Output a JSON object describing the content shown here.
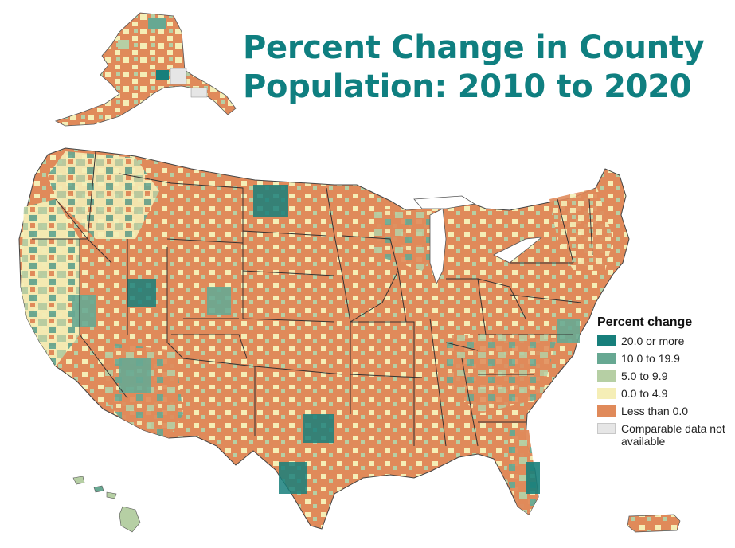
{
  "title": {
    "line1": "Percent Change in County",
    "line2": "Population: 2010 to 2020"
  },
  "legend": {
    "title": "Percent change",
    "items": [
      {
        "label": "20.0 or more",
        "color": "#177f7b"
      },
      {
        "label": "10.0 to 19.9",
        "color": "#67a892"
      },
      {
        "label": "5.0 to 9.9",
        "color": "#b6cfa4"
      },
      {
        "label": "0.0 to 4.9",
        "color": "#f5eeb6"
      },
      {
        "label": "Less than 0.0",
        "color": "#e08a5a"
      },
      {
        "label": "Comparable data not available",
        "color": "#e6e6e6"
      }
    ]
  },
  "colors": {
    "title": "#0f7f80",
    "state_border": "#3a3a3a"
  }
}
